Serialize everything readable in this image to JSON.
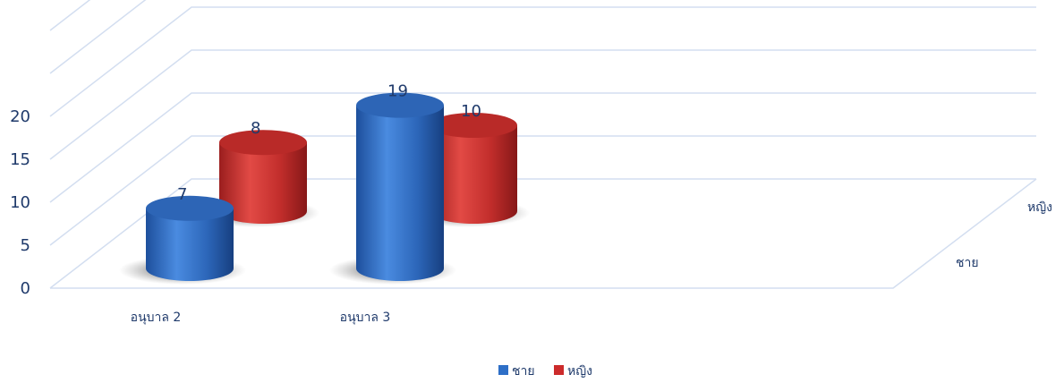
{
  "chart_data": {
    "type": "bar",
    "style": "3d-cylinder",
    "categories": [
      "อนุบาล 2",
      "อนุบาล 3"
    ],
    "series": [
      {
        "name": "ชาย",
        "values": [
          7,
          19
        ],
        "color": "#2e6fc7"
      },
      {
        "name": "หญิง",
        "values": [
          8,
          10
        ],
        "color": "#cc2b2b"
      }
    ],
    "yticks": [
      "0",
      "5",
      "10",
      "15",
      "20"
    ],
    "depth_labels": [
      "ชาย",
      "หญิง"
    ],
    "ylim": [
      0,
      20
    ],
    "grid": true,
    "legend_position": "bottom"
  }
}
